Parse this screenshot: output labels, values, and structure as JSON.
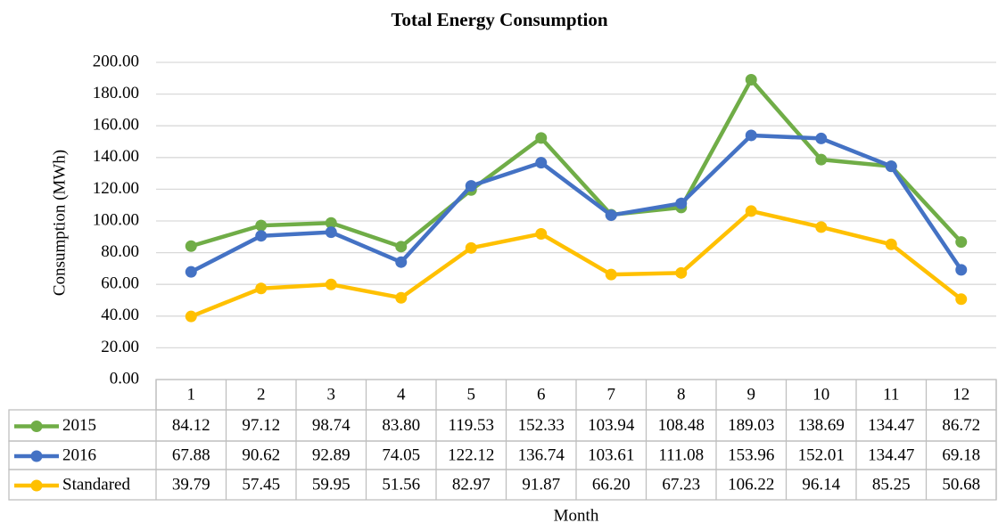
{
  "chart_data": {
    "type": "line",
    "title": "Total Energy Consumption",
    "x_label": "Month",
    "y_label": "Consumption (MWh)",
    "categories": [
      "1",
      "2",
      "3",
      "4",
      "5",
      "6",
      "7",
      "8",
      "9",
      "10",
      "11",
      "12"
    ],
    "series": [
      {
        "name": "2015",
        "color": "#70ad47",
        "values": [
          84.12,
          97.12,
          98.74,
          83.8,
          119.53,
          152.33,
          103.94,
          108.48,
          189.03,
          138.69,
          134.47,
          86.72
        ],
        "value_labels": [
          "84.12",
          "97.12",
          "98.74",
          "83.80",
          "119.53",
          "152.33",
          "103.94",
          "108.48",
          "189.03",
          "138.69",
          "134.47",
          "86.72"
        ]
      },
      {
        "name": "2016",
        "color": "#4472c4",
        "values": [
          67.88,
          90.62,
          92.89,
          74.05,
          122.12,
          136.74,
          103.61,
          111.08,
          153.96,
          152.01,
          134.47,
          69.18
        ],
        "value_labels": [
          "67.88",
          "90.62",
          "92.89",
          "74.05",
          "122.12",
          "136.74",
          "103.61",
          "111.08",
          "153.96",
          "152.01",
          "134.47",
          "69.18"
        ]
      },
      {
        "name": "Standared",
        "color": "#ffc000",
        "values": [
          39.79,
          57.45,
          59.95,
          51.56,
          82.97,
          91.87,
          66.2,
          67.23,
          106.22,
          96.14,
          85.25,
          50.68
        ],
        "value_labels": [
          "39.79",
          "57.45",
          "59.95",
          "51.56",
          "82.97",
          "91.87",
          "66.20",
          "67.23",
          "106.22",
          "96.14",
          "85.25",
          "50.68"
        ]
      }
    ],
    "ylim": [
      0,
      200
    ],
    "yticks": [
      {
        "value": 0,
        "label": "0.00"
      },
      {
        "value": 20,
        "label": "20.00"
      },
      {
        "value": 40,
        "label": "40.00"
      },
      {
        "value": 60,
        "label": "60.00"
      },
      {
        "value": 80,
        "label": "80.00"
      },
      {
        "value": 100,
        "label": "100.00"
      },
      {
        "value": 120,
        "label": "120.00"
      },
      {
        "value": 140,
        "label": "140.00"
      },
      {
        "value": 160,
        "label": "160.00"
      },
      {
        "value": 180,
        "label": "180.00"
      },
      {
        "value": 200,
        "label": "200.00"
      }
    ],
    "grid": true
  }
}
